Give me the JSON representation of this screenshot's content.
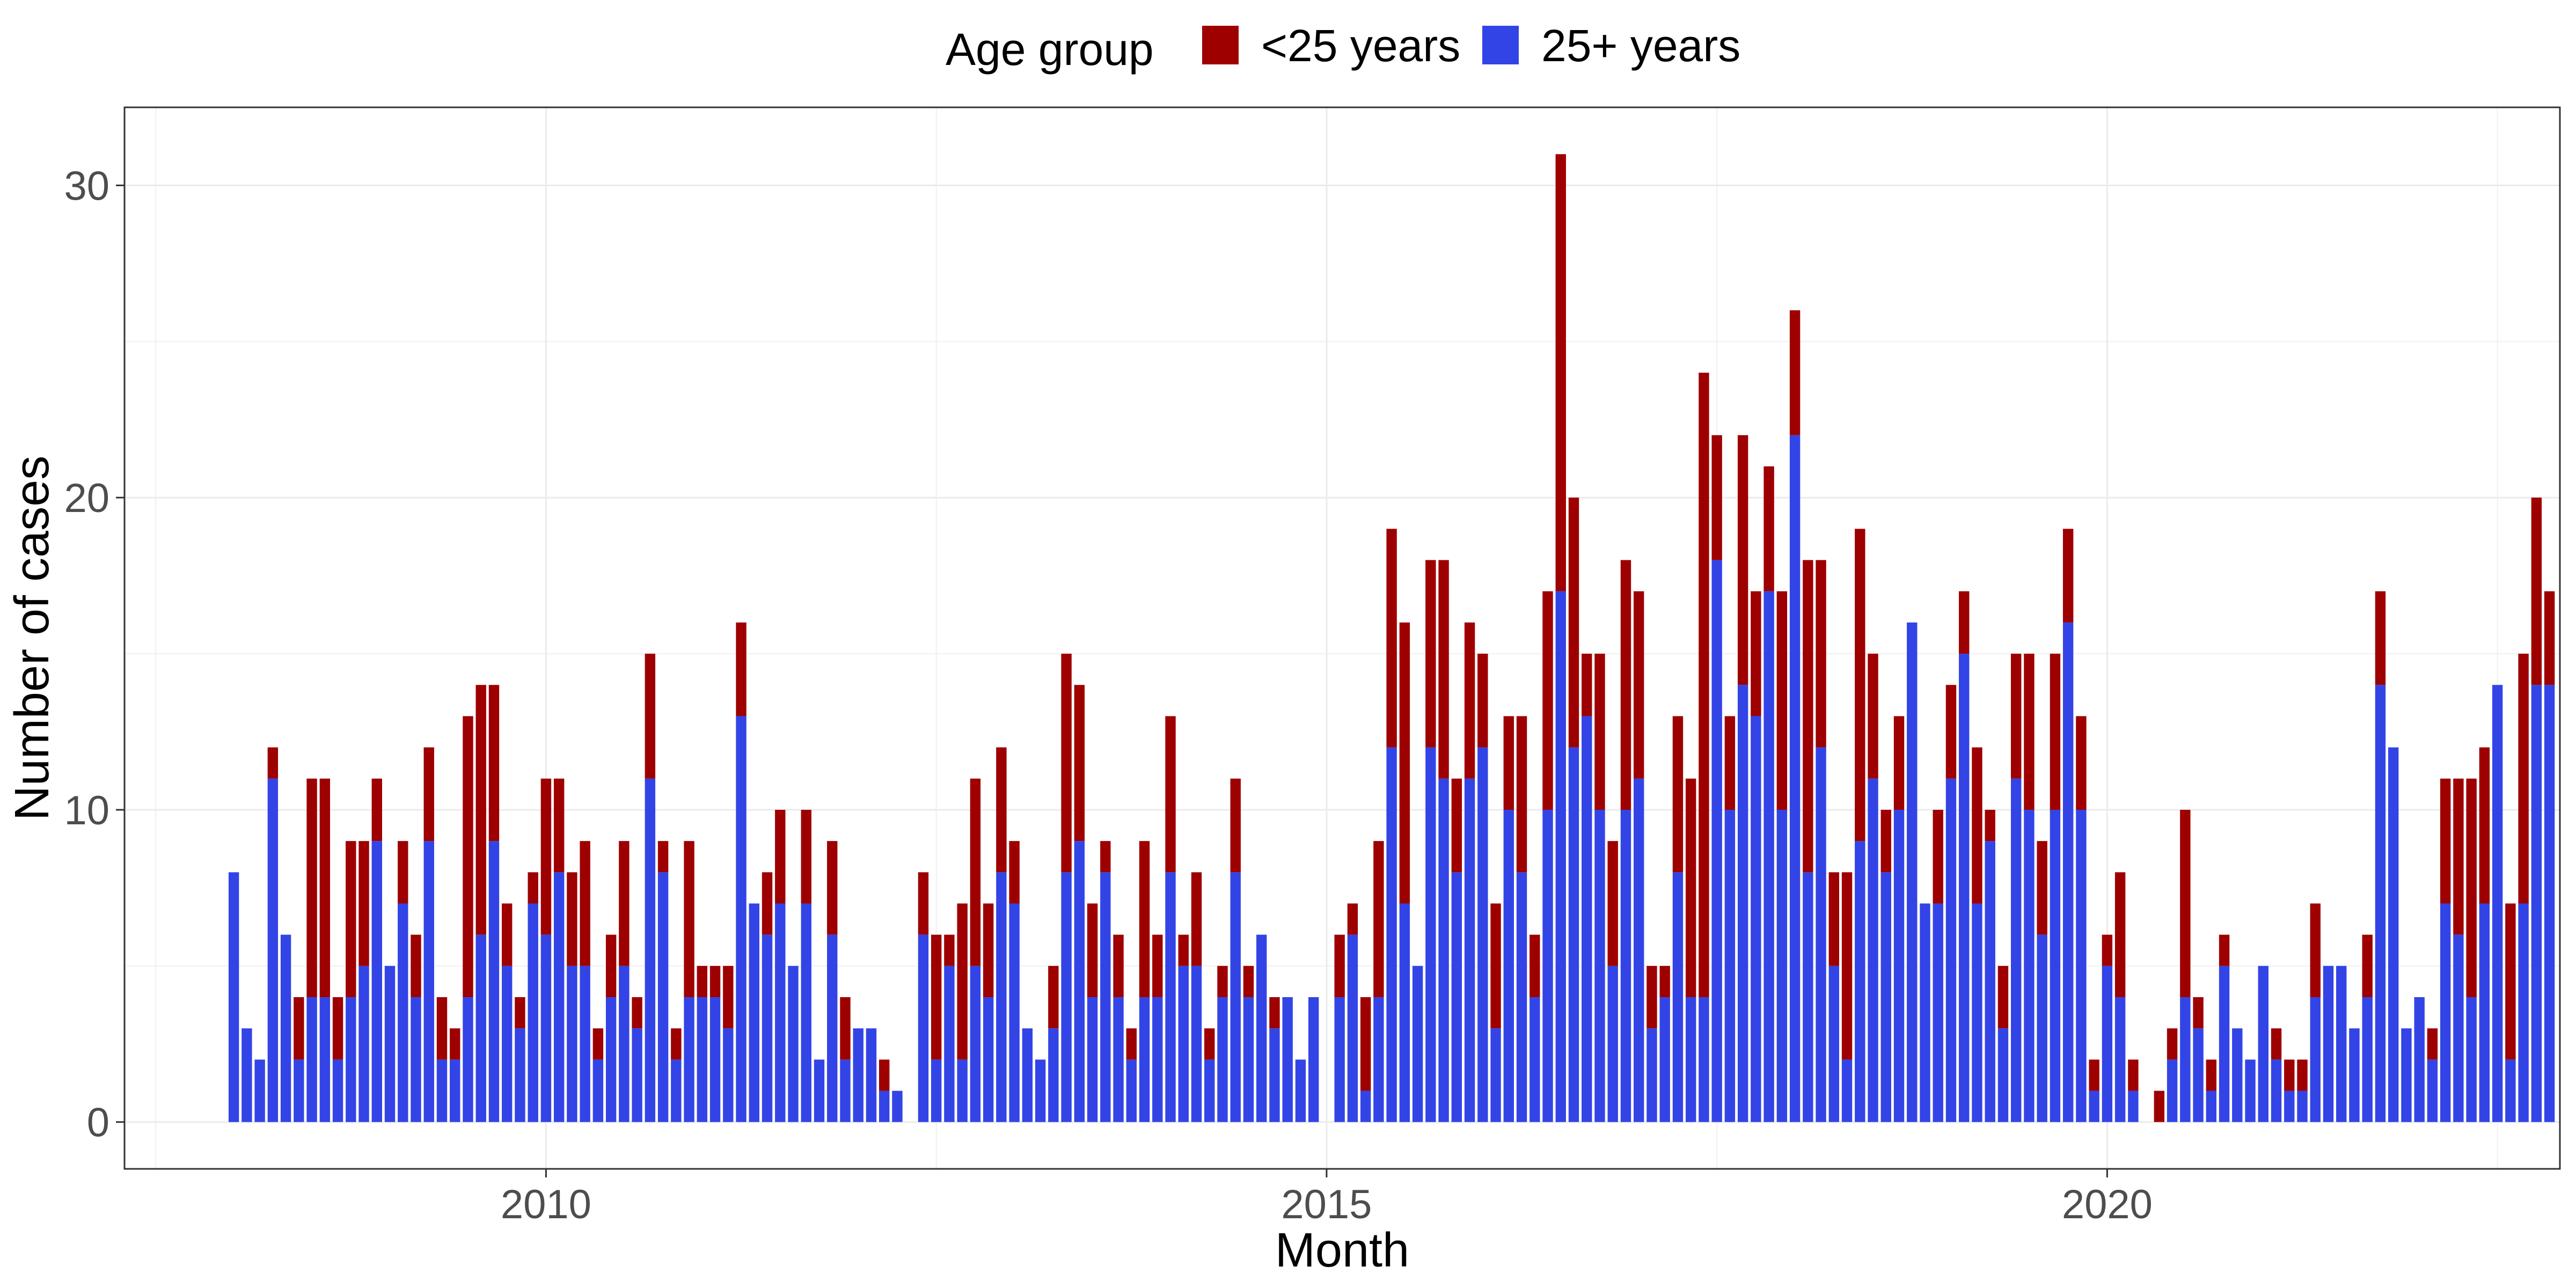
{
  "chart_data": {
    "type": "bar",
    "stacked": true,
    "title": "",
    "xlabel": "Month",
    "ylabel": "Number of cases",
    "x_start": "2008-01",
    "xlim": [
      2007.3,
      2022.9
    ],
    "ylim": [
      -1.5,
      32.5
    ],
    "x_ticks": [
      2010,
      2015,
      2020
    ],
    "y_ticks": [
      0,
      10,
      20,
      30
    ],
    "grid": true,
    "legend": {
      "title": "Age group",
      "position": "top",
      "entries": [
        "<25 years",
        "25+ years"
      ]
    },
    "colors": {
      "<25 years": "#9e0000",
      "25+ years": "#3344e6"
    },
    "series": [
      {
        "name": "25+ years",
        "values": [
          8,
          3,
          2,
          11,
          6,
          2,
          4,
          4,
          2,
          4,
          5,
          9,
          5,
          7,
          4,
          9,
          2,
          2,
          4,
          6,
          9,
          5,
          3,
          7,
          6,
          8,
          5,
          5,
          2,
          4,
          5,
          3,
          11,
          8,
          2,
          4,
          4,
          4,
          3,
          13,
          7,
          6,
          7,
          5,
          7,
          2,
          6,
          2,
          3,
          3,
          1,
          1,
          0,
          6,
          2,
          5,
          2,
          5,
          4,
          8,
          7,
          3,
          2,
          3,
          8,
          9,
          4,
          8,
          4,
          2,
          4,
          4,
          8,
          5,
          5,
          2,
          4,
          8,
          4,
          6,
          3,
          4,
          2,
          4,
          0,
          4,
          6,
          1,
          4,
          12,
          7,
          5,
          12,
          11,
          8,
          11,
          12,
          3,
          10,
          8,
          4,
          10,
          17,
          12,
          13,
          10,
          5,
          10,
          11,
          3,
          4,
          8,
          4,
          4,
          18,
          10,
          14,
          13,
          17,
          10,
          22,
          8,
          12,
          5,
          2,
          9,
          11,
          8,
          10,
          16,
          7,
          7,
          11,
          15,
          7,
          9,
          3,
          11,
          10,
          6,
          10,
          16,
          10,
          1,
          5,
          4,
          1,
          0,
          0,
          2,
          4,
          3,
          1,
          5,
          3,
          2,
          5,
          2,
          1,
          1,
          4,
          5,
          5,
          3,
          4,
          14,
          12,
          3,
          4,
          2,
          7,
          6,
          4,
          7,
          14,
          2,
          7,
          14,
          14
        ],
        "gaps": [
          52,
          84
        ]
      },
      {
        "name": "<25 years",
        "values": [
          0,
          0,
          0,
          1,
          0,
          2,
          7,
          7,
          2,
          5,
          4,
          2,
          0,
          2,
          2,
          3,
          2,
          1,
          9,
          8,
          5,
          2,
          1,
          1,
          5,
          3,
          3,
          4,
          1,
          2,
          4,
          1,
          4,
          1,
          1,
          5,
          1,
          1,
          2,
          3,
          0,
          2,
          3,
          0,
          3,
          0,
          3,
          2,
          0,
          0,
          1,
          0,
          0,
          2,
          4,
          1,
          5,
          6,
          3,
          4,
          2,
          0,
          0,
          2,
          7,
          5,
          3,
          1,
          2,
          1,
          5,
          2,
          5,
          1,
          3,
          1,
          1,
          3,
          1,
          0,
          1,
          0,
          0,
          0,
          0,
          2,
          1,
          3,
          5,
          7,
          9,
          0,
          6,
          7,
          3,
          5,
          3,
          4,
          3,
          5,
          2,
          7,
          14,
          8,
          2,
          5,
          4,
          8,
          6,
          2,
          1,
          5,
          7,
          20,
          4,
          3,
          8,
          4,
          4,
          7,
          4,
          10,
          6,
          3,
          6,
          10,
          4,
          2,
          3,
          0,
          0,
          3,
          3,
          2,
          5,
          1,
          2,
          4,
          5,
          3,
          5,
          3,
          3,
          1,
          1,
          4,
          1,
          0,
          1,
          1,
          6,
          1,
          1,
          1,
          0,
          0,
          0,
          1,
          1,
          1,
          3,
          0,
          0,
          0,
          2,
          3,
          0,
          0,
          0,
          1,
          4,
          5,
          7,
          5,
          0,
          5,
          8,
          6,
          3
        ]
      }
    ]
  }
}
